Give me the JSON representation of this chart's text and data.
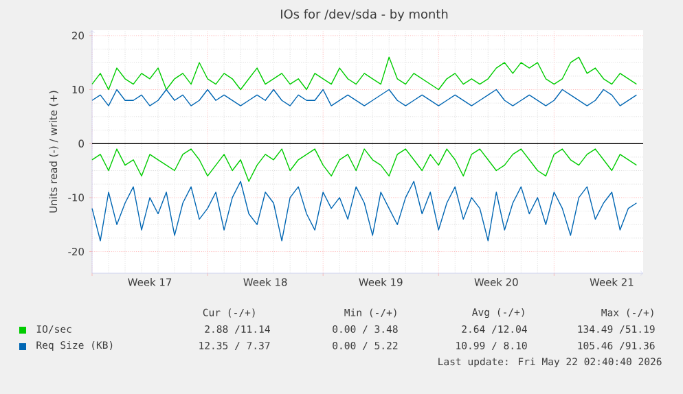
{
  "chart_data": {
    "type": "line",
    "title": "IOs for /dev/sda - by month",
    "ylabel": "Units read (-) / write (+)",
    "categories": [
      null,
      null,
      null,
      null,
      null,
      null,
      null,
      "Week 17",
      null,
      null,
      null,
      null,
      null,
      null,
      null,
      null,
      null,
      null,
      null,
      null,
      null,
      "Week 18",
      null,
      null,
      null,
      null,
      null,
      null,
      null,
      null,
      null,
      null,
      null,
      null,
      null,
      "Week 19",
      null,
      null,
      null,
      null,
      null,
      null,
      null,
      null,
      null,
      null,
      null,
      null,
      null,
      "Week 20",
      null,
      null,
      null,
      null,
      null,
      null,
      null,
      null,
      null,
      null,
      null,
      null,
      null,
      "Week 21",
      null,
      null,
      null
    ],
    "ylim": [
      -24,
      21
    ],
    "yticks": [
      -20,
      -10,
      0,
      10,
      20
    ],
    "grid": true,
    "legend": "bottom",
    "ref_lines": [
      {
        "axis": "y",
        "value": 0,
        "color": "#000000"
      }
    ],
    "series": [
      {
        "name": "IO/sec",
        "color": "#00cc00",
        "values": [
          11,
          13,
          10,
          14,
          12,
          11,
          13,
          12,
          14,
          10,
          12,
          13,
          11,
          15,
          12,
          11,
          13,
          12,
          10,
          12,
          14,
          11,
          12,
          13,
          11,
          12,
          10,
          13,
          12,
          11,
          14,
          12,
          11,
          13,
          12,
          11,
          16,
          12,
          11,
          13,
          12,
          11,
          10,
          12,
          13,
          11,
          12,
          11,
          12,
          14,
          15,
          13,
          15,
          14,
          15,
          12,
          11,
          12,
          15,
          16,
          13,
          14,
          12,
          11,
          13,
          12,
          11
        ]
      },
      {
        "color": "#00cc00",
        "values": [
          -3,
          -2,
          -5,
          -1,
          -4,
          -3,
          -6,
          -2,
          -3,
          -4,
          -5,
          -2,
          -1,
          -3,
          -6,
          -4,
          -2,
          -5,
          -3,
          -7,
          -4,
          -2,
          -3,
          -1,
          -5,
          -3,
          -2,
          -1,
          -4,
          -6,
          -3,
          -2,
          -5,
          -1,
          -3,
          -4,
          -6,
          -2,
          -1,
          -3,
          -5,
          -2,
          -4,
          -1,
          -3,
          -6,
          -2,
          -1,
          -3,
          -5,
          -4,
          -2,
          -1,
          -3,
          -5,
          -6,
          -2,
          -1,
          -3,
          -4,
          -2,
          -1,
          -3,
          -5,
          -2,
          -3,
          -4
        ]
      },
      {
        "name": "Req Size (KB)",
        "color": "#0066b3",
        "values": [
          8,
          9,
          7,
          10,
          8,
          8,
          9,
          7,
          8,
          10,
          8,
          9,
          7,
          8,
          10,
          8,
          9,
          8,
          7,
          8,
          9,
          8,
          10,
          8,
          7,
          9,
          8,
          8,
          10,
          7,
          8,
          9,
          8,
          7,
          8,
          9,
          10,
          8,
          7,
          8,
          9,
          8,
          7,
          8,
          9,
          8,
          7,
          8,
          9,
          10,
          8,
          7,
          8,
          9,
          8,
          7,
          8,
          10,
          9,
          8,
          7,
          8,
          10,
          9,
          7,
          8,
          9
        ]
      },
      {
        "color": "#0066b3",
        "values": [
          -12,
          -18,
          -9,
          -15,
          -11,
          -8,
          -16,
          -10,
          -13,
          -9,
          -17,
          -11,
          -8,
          -14,
          -12,
          -9,
          -16,
          -10,
          -7,
          -13,
          -15,
          -9,
          -11,
          -18,
          -10,
          -8,
          -13,
          -16,
          -9,
          -12,
          -10,
          -14,
          -8,
          -11,
          -17,
          -9,
          -12,
          -15,
          -10,
          -7,
          -13,
          -9,
          -16,
          -11,
          -8,
          -14,
          -10,
          -12,
          -18,
          -9,
          -16,
          -11,
          -8,
          -13,
          -10,
          -15,
          -9,
          -12,
          -17,
          -10,
          -8,
          -14,
          -11,
          -9,
          -16,
          -12,
          -11
        ]
      }
    ],
    "annotations": [
      "Cur (-/+)",
      "Min (-/+)",
      "Avg (-/+)",
      "Max (-/+)",
      "2.88 /11.14",
      "0.00 / 3.48",
      "2.64 /12.04",
      "134.49 /51.19",
      "12.35 / 7.37",
      "0.00 / 5.22",
      "10.99 / 8.10",
      "105.46 /91.36",
      "Last update: Fri May 22 02:40:40 2026"
    ]
  }
}
